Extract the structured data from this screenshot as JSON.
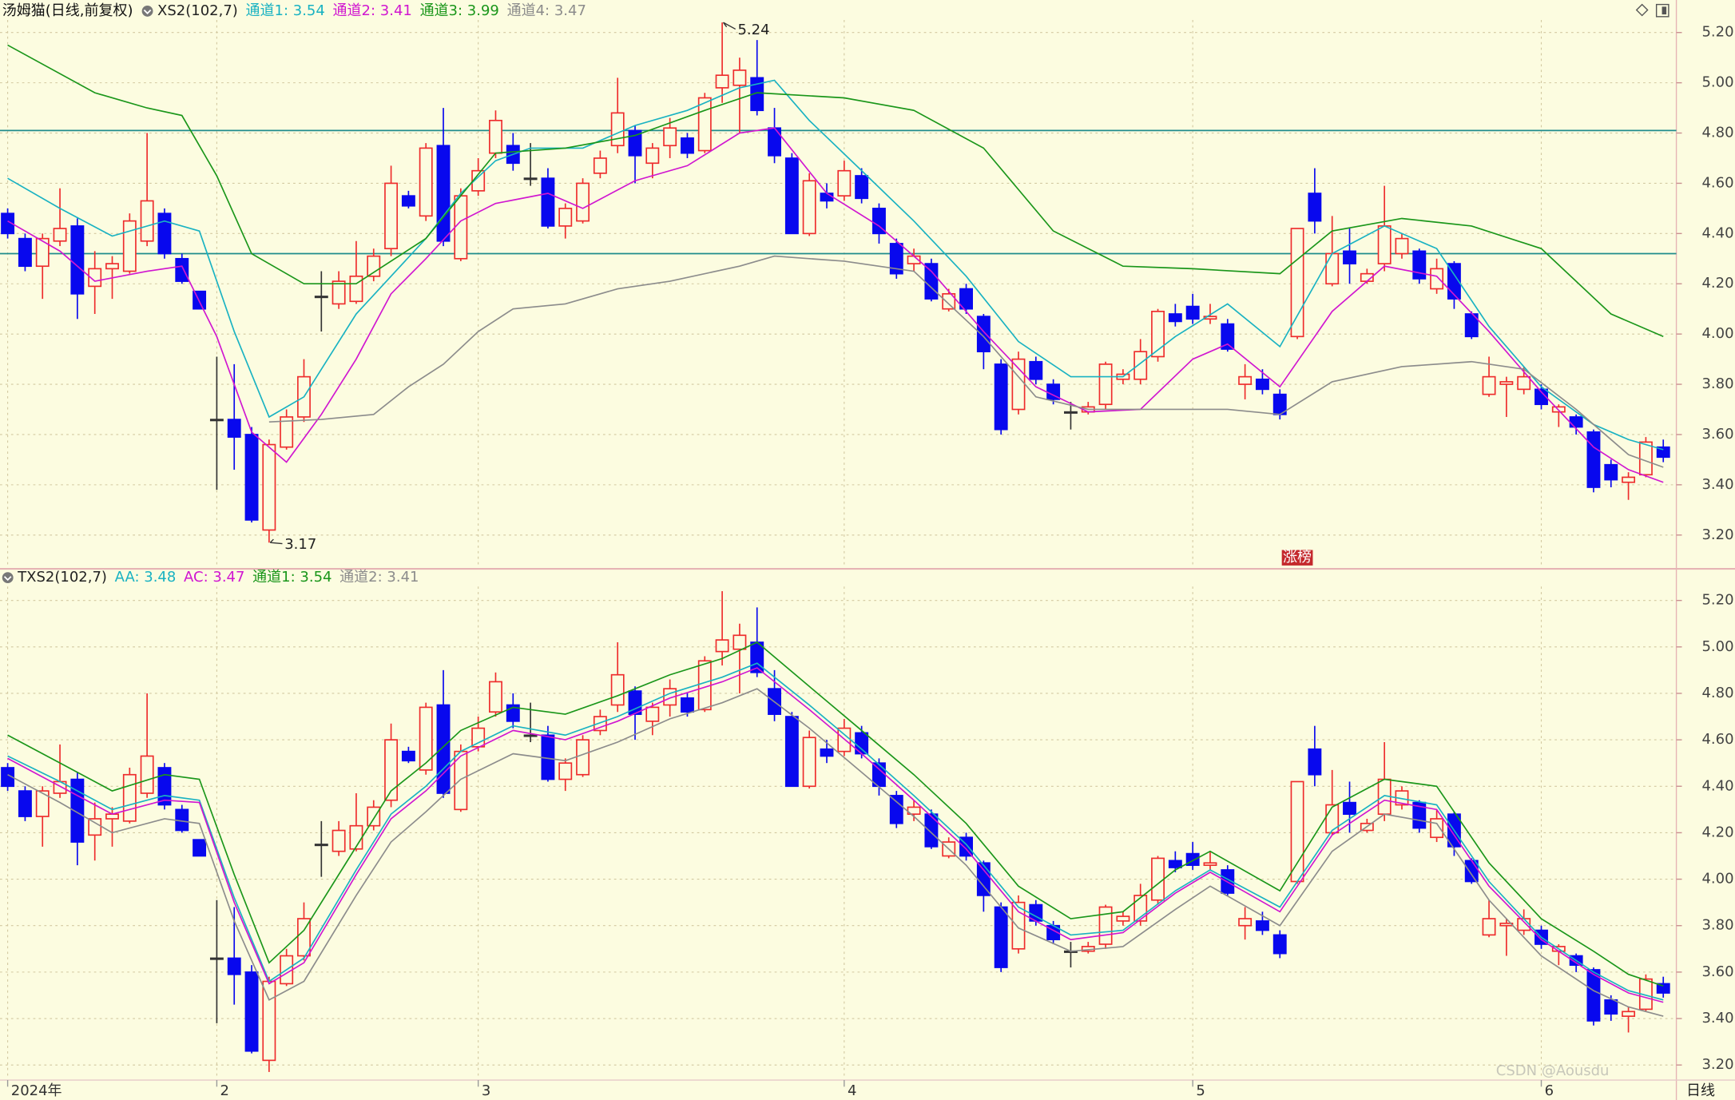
{
  "chart_data": {
    "type": "candlestick",
    "title": "汤姆猫(日线,前复权)",
    "up_color": "#ee2c2c",
    "down_color": "#0808ee",
    "flat_color": "#333333",
    "xlim": [
      -0.44,
      95.75
    ],
    "xticks": [
      {
        "value": 0,
        "label": "2024年"
      },
      {
        "value": 12,
        "label": "2"
      },
      {
        "value": 27,
        "label": "3"
      },
      {
        "value": 48,
        "label": "4"
      },
      {
        "value": 68,
        "label": "5"
      },
      {
        "value": 88,
        "label": "6"
      }
    ],
    "period_label": "日线",
    "watermark": "CSDN @Aousdu",
    "open": [
      4.48,
      4.38,
      4.27,
      4.37,
      4.43,
      4.19,
      4.26,
      4.25,
      4.37,
      4.48,
      4.3,
      4.17,
      3.66,
      3.66,
      3.6,
      3.22,
      3.55,
      3.67,
      4.15,
      4.12,
      4.13,
      4.23,
      4.34,
      4.55,
      4.47,
      4.75,
      4.3,
      4.57,
      4.72,
      4.75,
      4.62,
      4.62,
      4.43,
      4.45,
      4.64,
      4.75,
      4.81,
      4.68,
      4.75,
      4.78,
      4.73,
      4.98,
      4.99,
      5.02,
      4.82,
      4.7,
      4.4,
      4.56,
      4.55,
      4.63,
      4.5,
      4.36,
      4.28,
      4.28,
      4.1,
      4.18,
      4.07,
      3.88,
      3.7,
      3.89,
      3.8,
      3.69,
      3.69,
      3.72,
      3.82,
      3.82,
      3.91,
      4.08,
      4.11,
      4.06,
      4.04,
      3.8,
      3.82,
      3.76,
      3.99,
      4.56,
      4.2,
      4.33,
      4.21,
      4.28,
      4.32,
      4.33,
      4.18,
      4.28,
      4.08,
      3.76,
      3.8,
      3.78,
      3.78,
      3.69,
      3.67,
      3.61,
      3.48,
      3.41,
      3.44,
      3.55
    ],
    "high": [
      4.5,
      4.4,
      4.4,
      4.58,
      4.46,
      4.33,
      4.31,
      4.48,
      4.8,
      4.5,
      4.32,
      4.17,
      3.91,
      3.88,
      3.63,
      3.58,
      3.7,
      3.9,
      4.25,
      4.25,
      4.37,
      4.34,
      4.67,
      4.57,
      4.76,
      4.9,
      4.58,
      4.7,
      4.89,
      4.8,
      4.76,
      4.66,
      4.52,
      4.62,
      4.73,
      5.02,
      4.83,
      4.76,
      4.86,
      4.8,
      4.96,
      5.24,
      5.1,
      5.17,
      4.9,
      4.72,
      4.64,
      4.6,
      4.69,
      4.66,
      4.52,
      4.38,
      4.34,
      4.3,
      4.18,
      4.2,
      4.08,
      3.9,
      3.93,
      3.91,
      3.82,
      3.73,
      3.73,
      3.89,
      3.86,
      3.98,
      4.1,
      4.12,
      4.16,
      4.12,
      4.06,
      3.88,
      3.86,
      3.78,
      4.42,
      4.66,
      4.47,
      4.42,
      4.26,
      4.59,
      4.4,
      4.34,
      4.3,
      4.29,
      4.09,
      3.91,
      3.83,
      3.87,
      3.8,
      3.72,
      3.68,
      3.62,
      3.5,
      3.45,
      3.59,
      3.58
    ],
    "low": [
      4.38,
      4.25,
      4.14,
      4.35,
      4.06,
      4.08,
      4.14,
      4.24,
      4.35,
      4.3,
      4.2,
      4.1,
      3.38,
      3.46,
      3.25,
      3.17,
      3.54,
      3.65,
      4.01,
      4.1,
      4.12,
      4.21,
      4.31,
      4.5,
      4.45,
      4.35,
      4.29,
      4.55,
      4.7,
      4.65,
      4.59,
      4.42,
      4.38,
      4.44,
      4.62,
      4.72,
      4.6,
      4.62,
      4.7,
      4.7,
      4.72,
      4.92,
      4.8,
      4.87,
      4.68,
      4.4,
      4.39,
      4.5,
      4.53,
      4.52,
      4.36,
      4.22,
      4.25,
      4.13,
      4.09,
      4.08,
      3.86,
      3.6,
      3.68,
      3.8,
      3.72,
      3.62,
      3.68,
      3.7,
      3.8,
      3.8,
      3.89,
      4.03,
      4.04,
      4.04,
      3.93,
      3.74,
      3.76,
      3.66,
      3.98,
      4.4,
      4.19,
      4.2,
      4.2,
      4.25,
      4.3,
      4.2,
      4.16,
      4.1,
      3.98,
      3.75,
      3.67,
      3.76,
      3.7,
      3.63,
      3.6,
      3.37,
      3.39,
      3.34,
      3.43,
      3.49
    ],
    "close": [
      4.4,
      4.27,
      4.38,
      4.42,
      4.16,
      4.26,
      4.28,
      4.45,
      4.53,
      4.32,
      4.21,
      4.1,
      3.66,
      3.59,
      3.26,
      3.56,
      3.67,
      3.83,
      4.15,
      4.21,
      4.23,
      4.31,
      4.6,
      4.51,
      4.74,
      4.37,
      4.55,
      4.65,
      4.85,
      4.68,
      4.62,
      4.43,
      4.5,
      4.6,
      4.7,
      4.88,
      4.71,
      4.74,
      4.82,
      4.72,
      4.94,
      5.03,
      5.05,
      4.89,
      4.71,
      4.4,
      4.61,
      4.53,
      4.65,
      4.54,
      4.4,
      4.24,
      4.31,
      4.14,
      4.16,
      4.1,
      3.93,
      3.62,
      3.9,
      3.82,
      3.74,
      3.69,
      3.71,
      3.88,
      3.84,
      3.93,
      4.09,
      4.05,
      4.06,
      4.07,
      3.94,
      3.83,
      3.78,
      3.68,
      4.42,
      4.45,
      4.32,
      4.28,
      4.24,
      4.43,
      4.38,
      4.22,
      4.26,
      4.14,
      3.99,
      3.83,
      3.81,
      3.83,
      3.72,
      3.71,
      3.63,
      3.39,
      3.42,
      3.43,
      3.57,
      3.51
    ],
    "panels": [
      {
        "indicator": "XS2(102,7)",
        "ylim": [
          3.07,
          5.25
        ],
        "yticks": [
          {
            "value": 3.2,
            "label": "3.20"
          },
          {
            "value": 3.4,
            "label": "3.40"
          },
          {
            "value": 3.6,
            "label": "3.60"
          },
          {
            "value": 3.8,
            "label": "3.80"
          },
          {
            "value": 4.0,
            "label": "4.00"
          },
          {
            "value": 4.2,
            "label": "4.20"
          },
          {
            "value": 4.4,
            "label": "4.40"
          },
          {
            "value": 4.6,
            "label": "4.60"
          },
          {
            "value": 4.8,
            "label": "4.80"
          },
          {
            "value": 5.0,
            "label": "5.00"
          },
          {
            "value": 5.2,
            "label": "5.20"
          }
        ],
        "hlines": [
          4.81,
          4.32
        ],
        "hline_color": "#1f8c8c",
        "badge": {
          "label": "涨榜",
          "at": 74
        },
        "series": [
          {
            "name": "通道1: 3.54",
            "color": "#19b2c2",
            "x": [
              0,
              3,
              6,
              9,
              11,
              13,
              15,
              17,
              20,
              22,
              24,
              26,
              28,
              30,
              33,
              36,
              39,
              42,
              44,
              46,
              49,
              52,
              55,
              58,
              61,
              64,
              67,
              70,
              73,
              76,
              79,
              82,
              85,
              88,
              91,
              93,
              95
            ],
            "values": [
              4.62,
              4.5,
              4.39,
              4.45,
              4.41,
              4.01,
              3.67,
              3.75,
              4.08,
              4.23,
              4.38,
              4.56,
              4.69,
              4.74,
              4.74,
              4.83,
              4.89,
              4.98,
              5.01,
              4.85,
              4.65,
              4.45,
              4.23,
              3.97,
              3.83,
              3.83,
              3.99,
              4.12,
              3.95,
              4.32,
              4.43,
              4.34,
              4.03,
              3.79,
              3.64,
              3.58,
              3.54
            ]
          },
          {
            "name": "通道2: 3.41",
            "color": "#d016d0",
            "x": [
              0,
              3,
              5,
              8,
              10,
              12,
              14,
              16,
              18,
              20,
              22,
              24,
              26,
              28,
              31,
              33,
              36,
              39,
              42,
              44,
              47,
              50,
              53,
              56,
              59,
              62,
              65,
              68,
              70,
              73,
              76,
              79,
              82,
              85,
              88,
              91,
              93,
              95
            ],
            "values": [
              4.45,
              4.33,
              4.21,
              4.25,
              4.27,
              3.99,
              3.61,
              3.49,
              3.68,
              3.9,
              4.16,
              4.3,
              4.45,
              4.52,
              4.56,
              4.5,
              4.61,
              4.67,
              4.8,
              4.82,
              4.56,
              4.43,
              4.25,
              4.01,
              3.79,
              3.69,
              3.7,
              3.9,
              3.96,
              3.79,
              4.09,
              4.27,
              4.23,
              4.01,
              3.77,
              3.55,
              3.46,
              3.41
            ]
          },
          {
            "name": "通道3: 3.99",
            "color": "#1a961a",
            "x": [
              0,
              5,
              8,
              10,
              12,
              14,
              17,
              20,
              24,
              28,
              32,
              36,
              40,
              43,
              48,
              52,
              56,
              60,
              64,
              68,
              73,
              76,
              80,
              84,
              88,
              92,
              95
            ],
            "values": [
              5.15,
              4.96,
              4.9,
              4.87,
              4.63,
              4.32,
              4.2,
              4.2,
              4.38,
              4.72,
              4.74,
              4.79,
              4.89,
              4.96,
              4.94,
              4.89,
              4.74,
              4.41,
              4.27,
              4.26,
              4.24,
              4.41,
              4.46,
              4.43,
              4.34,
              4.08,
              3.99
            ]
          },
          {
            "name": "通道4: 3.47",
            "color": "#8c8c8c",
            "x": [
              15,
              18,
              21,
              23,
              25,
              27,
              29,
              32,
              35,
              38,
              42,
              44,
              48,
              52,
              56,
              59,
              62,
              66,
              70,
              73,
              76,
              80,
              84,
              87,
              90,
              93,
              95
            ],
            "values": [
              3.65,
              3.66,
              3.68,
              3.79,
              3.88,
              4.01,
              4.1,
              4.12,
              4.18,
              4.21,
              4.27,
              4.31,
              4.29,
              4.25,
              3.99,
              3.75,
              3.7,
              3.7,
              3.7,
              3.68,
              3.81,
              3.87,
              3.89,
              3.86,
              3.7,
              3.52,
              3.47
            ]
          }
        ]
      },
      {
        "indicator": "TXS2(102,7)",
        "ylim": [
          3.14,
          5.26
        ],
        "yticks": [
          {
            "value": 3.2,
            "label": "3.20"
          },
          {
            "value": 3.4,
            "label": "3.40"
          },
          {
            "value": 3.6,
            "label": "3.60"
          },
          {
            "value": 3.8,
            "label": "3.80"
          },
          {
            "value": 4.0,
            "label": "4.00"
          },
          {
            "value": 4.2,
            "label": "4.20"
          },
          {
            "value": 4.4,
            "label": "4.40"
          },
          {
            "value": 4.6,
            "label": "4.60"
          },
          {
            "value": 4.8,
            "label": "4.80"
          },
          {
            "value": 5.0,
            "label": "5.00"
          },
          {
            "value": 5.2,
            "label": "5.20"
          }
        ],
        "series": [
          {
            "name": "AA: 3.48",
            "color": "#19b2c2",
            "x": [
              0,
              3,
              6,
              9,
              11,
              13,
              15,
              17,
              20,
              22,
              24,
              26,
              29,
              32,
              35,
              38,
              41,
              43,
              46,
              49,
              52,
              55,
              58,
              61,
              64,
              67,
              69,
              73,
              76,
              79,
              82,
              85,
              88,
              91,
              93,
              95
            ],
            "values": [
              4.53,
              4.42,
              4.3,
              4.36,
              4.34,
              3.92,
              3.56,
              3.66,
              4.04,
              4.28,
              4.4,
              4.55,
              4.66,
              4.62,
              4.7,
              4.8,
              4.87,
              4.93,
              4.75,
              4.56,
              4.36,
              4.15,
              3.88,
              3.76,
              3.78,
              3.95,
              4.04,
              3.88,
              4.21,
              4.36,
              4.32,
              3.99,
              3.75,
              3.6,
              3.52,
              3.48
            ]
          },
          {
            "name": "AC: 3.47",
            "color": "#d016d0",
            "x": [
              0,
              3,
              6,
              9,
              11,
              13,
              15,
              17,
              20,
              22,
              24,
              26,
              29,
              32,
              35,
              38,
              41,
              43,
              46,
              49,
              52,
              55,
              58,
              61,
              64,
              67,
              69,
              73,
              76,
              79,
              82,
              85,
              88,
              91,
              93,
              95
            ],
            "values": [
              4.52,
              4.4,
              4.28,
              4.34,
              4.33,
              3.9,
              3.55,
              3.64,
              4.02,
              4.26,
              4.38,
              4.53,
              4.64,
              4.6,
              4.68,
              4.78,
              4.85,
              4.91,
              4.73,
              4.54,
              4.34,
              4.13,
              3.86,
              3.74,
              3.77,
              3.94,
              4.03,
              3.86,
              4.19,
              4.34,
              4.3,
              3.97,
              3.74,
              3.59,
              3.51,
              3.47
            ]
          },
          {
            "name": "通道1: 3.54",
            "color": "#1a961a",
            "x": [
              0,
              3,
              6,
              9,
              11,
              13,
              15,
              17,
              20,
              22,
              24,
              26,
              29,
              32,
              35,
              38,
              41,
              43,
              46,
              49,
              52,
              55,
              58,
              61,
              64,
              67,
              69,
              73,
              76,
              79,
              82,
              85,
              88,
              91,
              93,
              95
            ],
            "values": [
              4.62,
              4.5,
              4.38,
              4.45,
              4.43,
              4.02,
              3.64,
              3.78,
              4.14,
              4.38,
              4.5,
              4.64,
              4.74,
              4.71,
              4.79,
              4.88,
              4.95,
              5.02,
              4.83,
              4.64,
              4.45,
              4.24,
              3.97,
              3.83,
              3.86,
              4.04,
              4.12,
              3.95,
              4.31,
              4.43,
              4.4,
              4.07,
              3.83,
              3.69,
              3.59,
              3.54
            ]
          },
          {
            "name": "通道2: 3.41",
            "color": "#8c8c8c",
            "x": [
              0,
              3,
              6,
              9,
              11,
              13,
              15,
              17,
              20,
              22,
              24,
              26,
              29,
              32,
              35,
              38,
              41,
              43,
              46,
              49,
              52,
              55,
              58,
              61,
              64,
              67,
              69,
              73,
              76,
              79,
              82,
              85,
              88,
              91,
              93,
              95
            ],
            "values": [
              4.45,
              4.33,
              4.2,
              4.26,
              4.24,
              3.82,
              3.48,
              3.56,
              3.93,
              4.16,
              4.29,
              4.43,
              4.54,
              4.51,
              4.59,
              4.69,
              4.76,
              4.82,
              4.65,
              4.46,
              4.27,
              4.06,
              3.79,
              3.69,
              3.71,
              3.87,
              3.97,
              3.8,
              4.12,
              4.28,
              4.24,
              3.91,
              3.67,
              3.52,
              3.45,
              3.41
            ]
          }
        ]
      }
    ]
  }
}
